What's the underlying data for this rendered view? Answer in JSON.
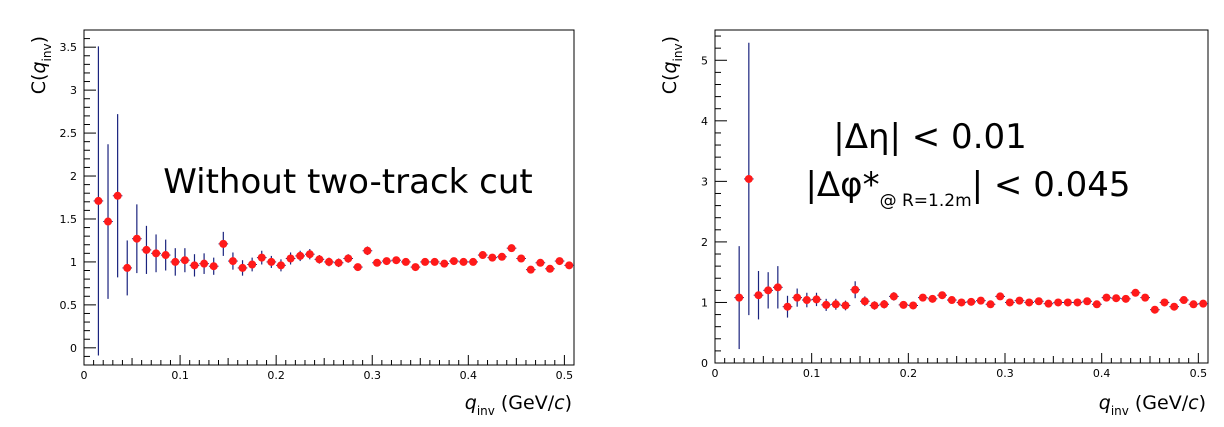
{
  "chart_data": [
    {
      "type": "scatter",
      "xlabel": "q_inv (GeV/c)",
      "ylabel": "C(q_inv)",
      "xlim": [
        0,
        0.51
      ],
      "ylim": [
        -0.2,
        3.7
      ],
      "xticks": [
        0,
        0.1,
        0.2,
        0.3,
        0.4,
        0.5
      ],
      "xtick_labels": [
        "0",
        "0.1",
        "0.2",
        "0.3",
        "0.4",
        "0.5"
      ],
      "yticks": [
        0,
        0.5,
        1,
        1.5,
        2,
        2.5,
        3,
        3.5
      ],
      "ytick_labels": [
        "0",
        "0.5",
        "1",
        "1.5",
        "2",
        "2.5",
        "3",
        "3.5"
      ],
      "annotation": [
        "Without two-track cut"
      ],
      "x": [
        0.015,
        0.025,
        0.035,
        0.045,
        0.055,
        0.065,
        0.075,
        0.085,
        0.095,
        0.105,
        0.115,
        0.125,
        0.135,
        0.145,
        0.155,
        0.165,
        0.175,
        0.185,
        0.195,
        0.205,
        0.215,
        0.225,
        0.235,
        0.245,
        0.255,
        0.265,
        0.275,
        0.285,
        0.295,
        0.305,
        0.315,
        0.325,
        0.335,
        0.345,
        0.355,
        0.365,
        0.375,
        0.385,
        0.395,
        0.405,
        0.415,
        0.425,
        0.435,
        0.445,
        0.455,
        0.465,
        0.475,
        0.485,
        0.495,
        0.505
      ],
      "y": [
        1.71,
        1.47,
        1.77,
        0.93,
        1.27,
        1.14,
        1.1,
        1.08,
        1.0,
        1.02,
        0.96,
        0.98,
        0.95,
        1.21,
        1.01,
        0.93,
        0.97,
        1.05,
        1.0,
        0.96,
        1.04,
        1.07,
        1.09,
        1.03,
        1.0,
        0.99,
        1.04,
        0.94,
        1.13,
        0.99,
        1.01,
        1.02,
        1.0,
        0.94,
        1.0,
        1.0,
        0.98,
        1.01,
        1.0,
        1.0,
        1.08,
        1.05,
        1.06,
        1.16,
        1.04,
        0.91,
        0.99,
        0.92,
        1.01,
        0.96
      ],
      "yerr": [
        1.8,
        0.9,
        0.95,
        0.32,
        0.4,
        0.28,
        0.22,
        0.18,
        0.16,
        0.14,
        0.13,
        0.12,
        0.1,
        0.14,
        0.1,
        0.09,
        0.08,
        0.08,
        0.07,
        0.07,
        0.07,
        0.06,
        0.06,
        0.05,
        0.05,
        0.05,
        0.05,
        0.04,
        0.05,
        0.04,
        0.04,
        0.04,
        0.04,
        0.04,
        0.04,
        0.04,
        0.03,
        0.03,
        0.03,
        0.03,
        0.03,
        0.03,
        0.03,
        0.03,
        0.03,
        0.03,
        0.03,
        0.03,
        0.03,
        0.03
      ],
      "xerr": 0.005
    },
    {
      "type": "scatter",
      "xlabel": "q_inv (GeV/c)",
      "ylabel": "C(q_inv)",
      "xlim": [
        0,
        0.51
      ],
      "ylim": [
        0,
        5.5
      ],
      "xticks": [
        0,
        0.1,
        0.2,
        0.3,
        0.4,
        0.5
      ],
      "xtick_labels": [
        "0",
        "0.1",
        "0.2",
        "0.3",
        "0.4",
        "0.5"
      ],
      "yticks": [
        0,
        1,
        2,
        3,
        4,
        5
      ],
      "ytick_labels": [
        "0",
        "1",
        "2",
        "3",
        "4",
        "5"
      ],
      "annotation": [
        "|Δη| < 0.01",
        "|Δφ*@ R=1.2m| < 0.045"
      ],
      "x": [
        0.025,
        0.035,
        0.045,
        0.055,
        0.065,
        0.075,
        0.085,
        0.095,
        0.105,
        0.115,
        0.125,
        0.135,
        0.145,
        0.155,
        0.165,
        0.175,
        0.185,
        0.195,
        0.205,
        0.215,
        0.225,
        0.235,
        0.245,
        0.255,
        0.265,
        0.275,
        0.285,
        0.295,
        0.305,
        0.315,
        0.325,
        0.335,
        0.345,
        0.355,
        0.365,
        0.375,
        0.385,
        0.395,
        0.405,
        0.415,
        0.425,
        0.435,
        0.445,
        0.455,
        0.465,
        0.475,
        0.485,
        0.495,
        0.505
      ],
      "y": [
        1.08,
        3.04,
        1.12,
        1.2,
        1.25,
        0.93,
        1.08,
        1.04,
        1.05,
        0.96,
        0.97,
        0.95,
        1.21,
        1.02,
        0.95,
        0.97,
        1.1,
        0.96,
        0.95,
        1.08,
        1.06,
        1.12,
        1.04,
        1.0,
        1.01,
        1.03,
        0.97,
        1.1,
        1.0,
        1.03,
        1.0,
        1.02,
        0.98,
        1.0,
        1.0,
        1.0,
        1.02,
        0.97,
        1.08,
        1.07,
        1.06,
        1.16,
        1.08,
        0.88,
        1.0,
        0.93,
        1.04,
        0.97,
        0.98
      ],
      "yerr": [
        0.85,
        2.25,
        0.4,
        0.3,
        0.35,
        0.18,
        0.15,
        0.12,
        0.11,
        0.1,
        0.09,
        0.08,
        0.14,
        0.08,
        0.07,
        0.07,
        0.07,
        0.06,
        0.06,
        0.06,
        0.05,
        0.05,
        0.05,
        0.05,
        0.04,
        0.04,
        0.04,
        0.04,
        0.04,
        0.04,
        0.04,
        0.04,
        0.03,
        0.03,
        0.03,
        0.03,
        0.03,
        0.03,
        0.03,
        0.03,
        0.03,
        0.03,
        0.03,
        0.03,
        0.03,
        0.03,
        0.03,
        0.03,
        0.03
      ],
      "xerr": 0.005
    }
  ],
  "labels": {
    "x_var": "q",
    "x_sub": "inv",
    "x_unit_open": " (GeV/",
    "x_unit_c": "c",
    "x_unit_close": ")",
    "y_open": "C(",
    "y_var": "q",
    "y_sub": "inv",
    "y_close": ")",
    "left_annotation": "Without two-track cut",
    "right_eta": "|Δη| < 0.01",
    "right_phi_main": "|Δφ*",
    "right_phi_sub": "@ R=1.2m",
    "right_phi_tail": "| < 0.045"
  },
  "colors": {
    "marker": "#ff1a1a",
    "errorbar": "#1a237e",
    "axis": "#000000"
  }
}
